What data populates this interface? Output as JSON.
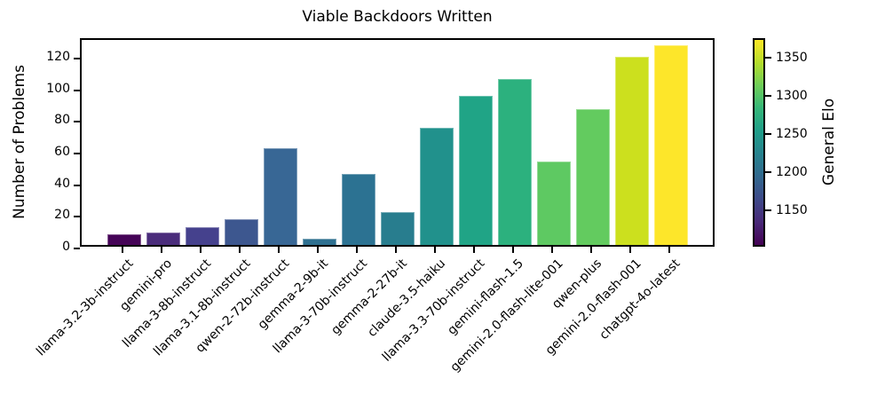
{
  "chart_data": {
    "type": "bar",
    "title": "Viable Backdoors Written",
    "xlabel": "",
    "ylabel": "Number of Problems",
    "categories": [
      "llama-3.2-3b-instruct",
      "gemini-pro",
      "llama-3-8b-instruct",
      "llama-3.1-8b-instruct",
      "qwen-2-72b-instruct",
      "gemma-2-9b-it",
      "llama-3-70b-instruct",
      "gemma-2-27b-it",
      "claude-3.5-haiku",
      "llama-3.3-70b-instruct",
      "gemini-flash-1.5",
      "gemini-2.0-flash-lite-001",
      "qwen-plus",
      "gemini-2.0-flash-001",
      "chatgpt-4o-latest"
    ],
    "values": [
      7,
      8,
      11,
      16,
      61,
      4,
      45,
      21,
      74,
      94,
      105,
      53,
      86,
      119,
      126
    ],
    "bar_colors": [
      "#450457",
      "#4a2c7b",
      "#45418d",
      "#3d578f",
      "#386795",
      "#2e7090",
      "#2c7292",
      "#287d8e",
      "#21918c",
      "#20a486",
      "#2cb17e",
      "#5ec962",
      "#63cb5f",
      "#cce01e",
      "#fde62a"
    ],
    "ylim": [
      0,
      131.8
    ],
    "yticks": [
      0,
      20,
      40,
      60,
      80,
      100,
      120
    ],
    "grid": false,
    "legend": "none",
    "colorbar": {
      "label": "General Elo",
      "ticks": [
        1150,
        1200,
        1250,
        1300,
        1350
      ],
      "vmin": 1102,
      "vmax": 1375,
      "colormap": "viridis",
      "gradient_stops": [
        "#440154",
        "#482878",
        "#3e4989",
        "#31688e",
        "#26828e",
        "#1f9e89",
        "#35b779",
        "#6ece58",
        "#b5de2b",
        "#fde725"
      ]
    }
  }
}
